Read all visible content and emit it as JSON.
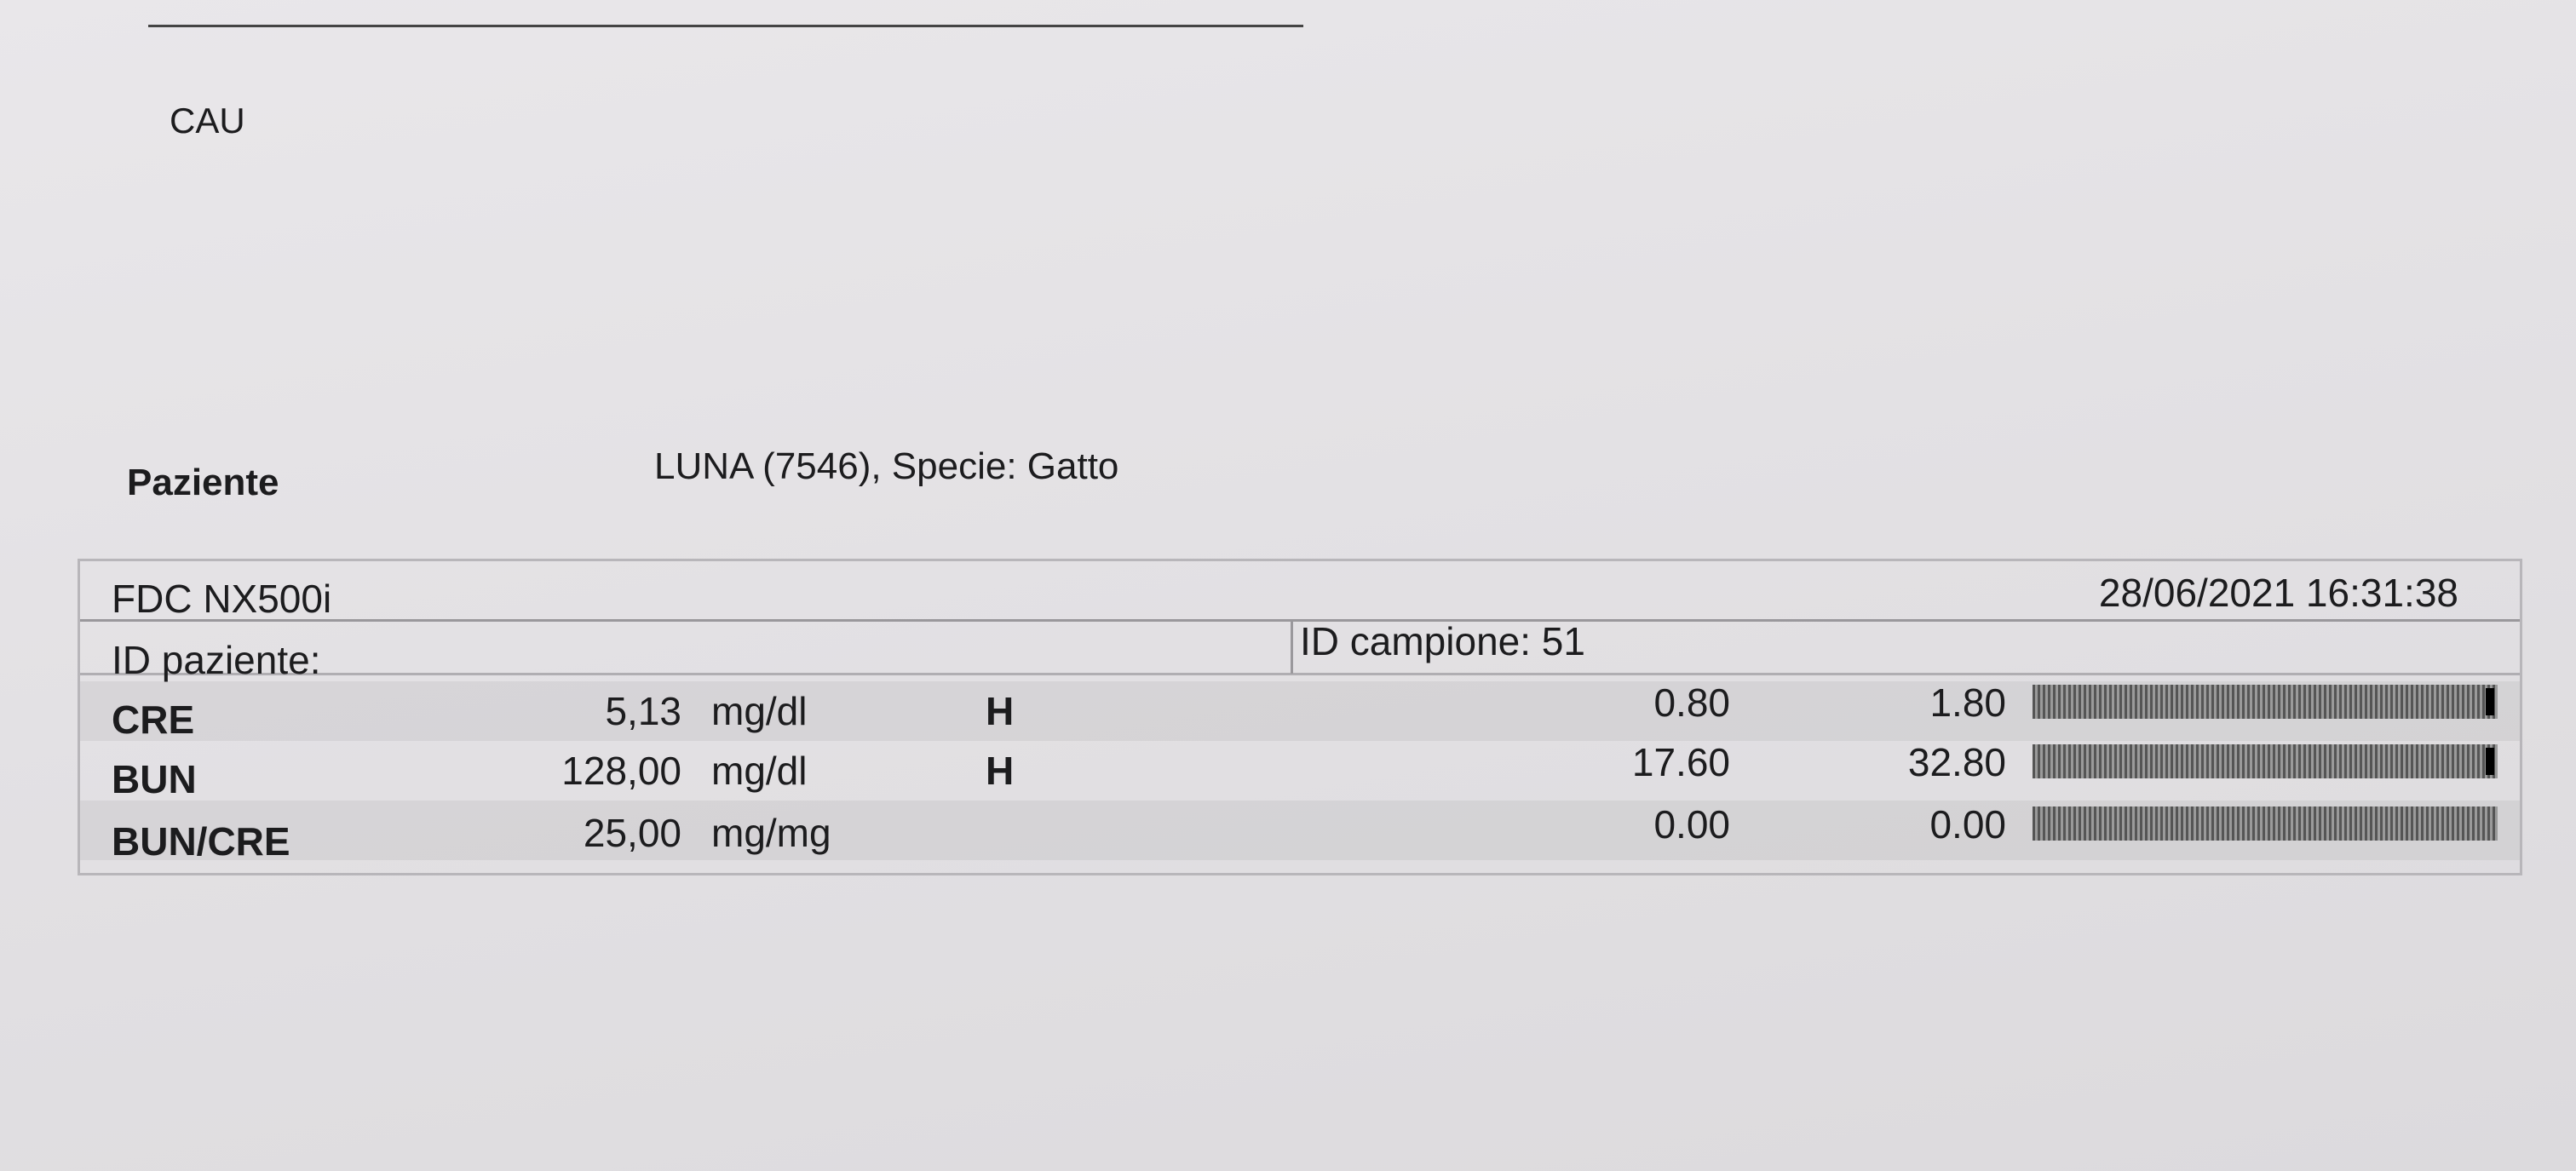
{
  "header": {
    "code": "CAU",
    "patient_label": "Paziente",
    "patient_info": "LUNA (7546), Specie: Gatto"
  },
  "report": {
    "instrument": "FDC NX500i",
    "datetime": "28/06/2021 16:31:38",
    "patient_id_label": "ID paziente:",
    "sample_id": "ID campione: 51",
    "rows": [
      {
        "test": "CRE",
        "value": "5,13",
        "unit": "mg/dl",
        "flag": "H",
        "low": "0.80",
        "high": "1.80"
      },
      {
        "test": "BUN",
        "value": "128,00",
        "unit": "mg/dl",
        "flag": "H",
        "low": "17.60",
        "high": "32.80"
      },
      {
        "test": "BUN/CRE",
        "value": "25,00",
        "unit": "mg/mg",
        "low": "0.00",
        "high": "0.00"
      }
    ]
  }
}
